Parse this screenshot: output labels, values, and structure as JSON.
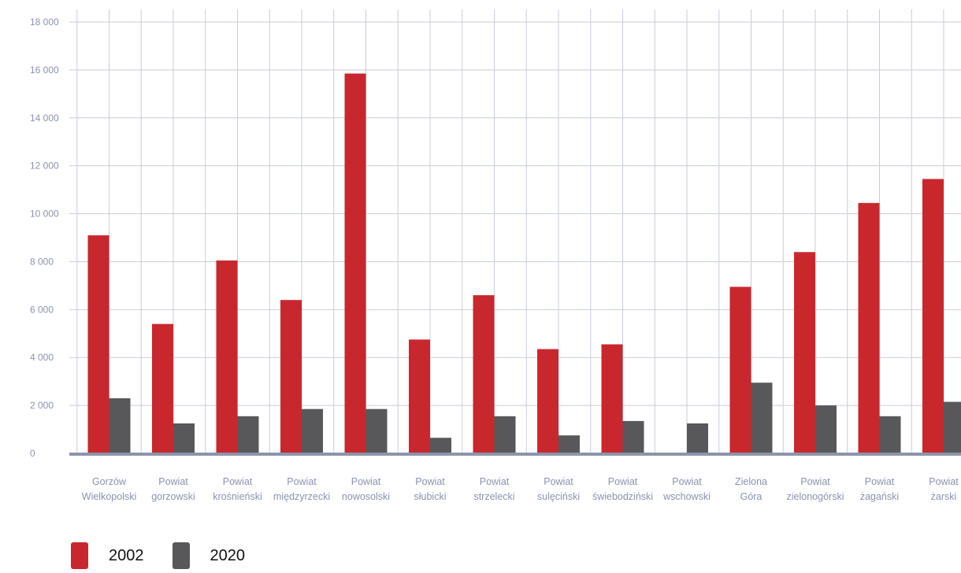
{
  "chart_data": {
    "type": "bar",
    "categories": [
      [
        "Gorzów",
        "Wielkopolski"
      ],
      [
        "Powiat",
        "gorzowski"
      ],
      [
        "Powiat",
        "krośnieński"
      ],
      [
        "Powiat",
        "międzyrzecki"
      ],
      [
        "Powiat",
        "nowosolski"
      ],
      [
        "Powiat",
        "słubicki"
      ],
      [
        "Powiat",
        "strzelecki"
      ],
      [
        "Powiat",
        "sulęciński"
      ],
      [
        "Powiat",
        "świebodziński"
      ],
      [
        "Powiat",
        "wschowski"
      ],
      [
        "Zielona",
        "Góra"
      ],
      [
        "Powiat",
        "zielonogórski"
      ],
      [
        "Powiat",
        "żagański"
      ],
      [
        "Powiat",
        "żarski"
      ]
    ],
    "series": [
      {
        "name": "2002",
        "color": "#c8282d",
        "values": [
          9100,
          5400,
          8050,
          6400,
          15850,
          4750,
          6600,
          4350,
          4550,
          0,
          6950,
          8400,
          10450,
          11450
        ]
      },
      {
        "name": "2020",
        "color": "#58585a",
        "values": [
          2300,
          1250,
          1550,
          1850,
          1850,
          650,
          1550,
          750,
          1350,
          1250,
          2950,
          2000,
          1550,
          2150
        ]
      }
    ],
    "ylim": [
      0,
      18000
    ],
    "yticks": [
      {
        "value": 0,
        "label": "0"
      },
      {
        "value": 2000,
        "label": "2 000"
      },
      {
        "value": 4000,
        "label": "4 000"
      },
      {
        "value": 6000,
        "label": "6 000"
      },
      {
        "value": 8000,
        "label": "8 000"
      },
      {
        "value": 10000,
        "label": "10 000"
      },
      {
        "value": 12000,
        "label": "12 000"
      },
      {
        "value": 14000,
        "label": "14 000"
      },
      {
        "value": 16000,
        "label": "16 000"
      },
      {
        "value": 18000,
        "label": "18 000"
      }
    ],
    "grid": true,
    "legend_position": "bottom-left",
    "colors": {
      "grid": "#c9cdda",
      "axis": "#8d94ab",
      "labels": "#8a93ad"
    }
  },
  "legend": {
    "items": [
      {
        "label": "2002",
        "color": "#c8282d"
      },
      {
        "label": "2020",
        "color": "#58585a"
      }
    ]
  }
}
